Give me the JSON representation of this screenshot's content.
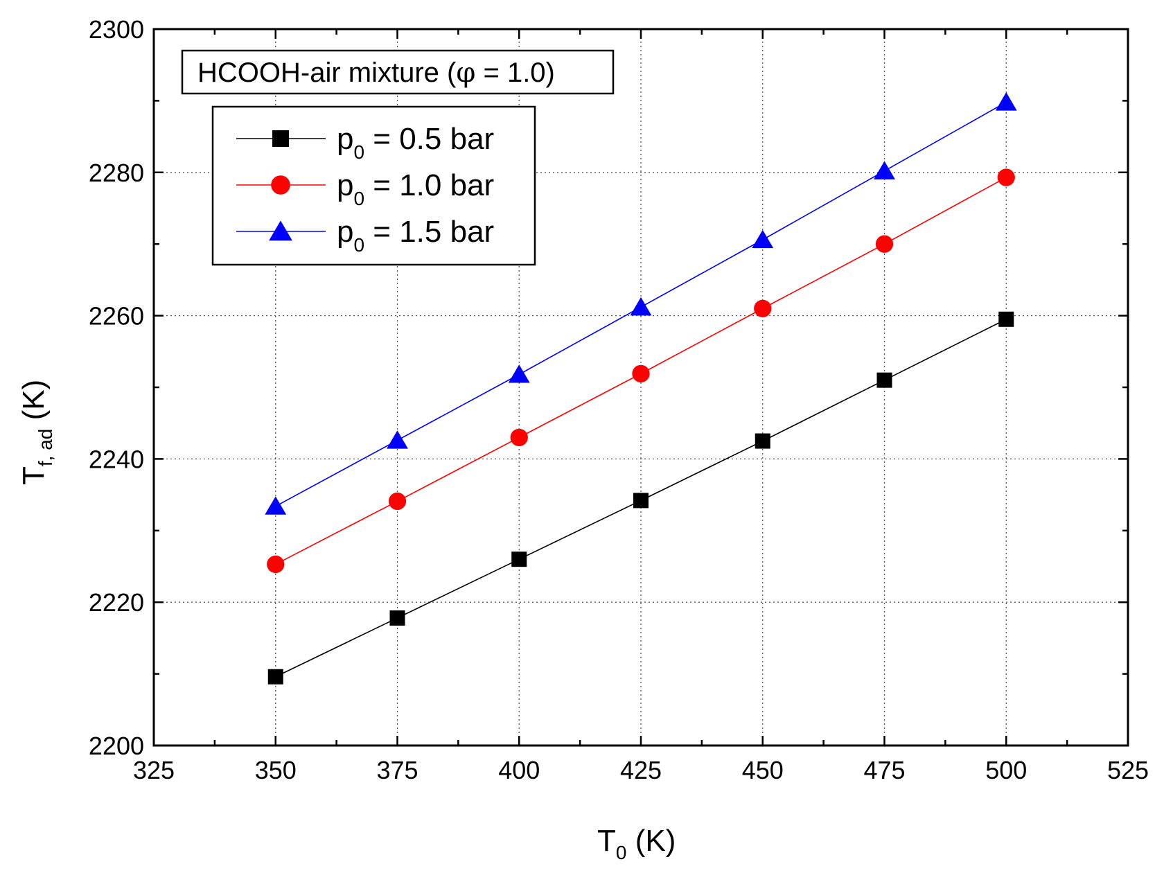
{
  "chart_data": {
    "type": "line",
    "annotation": {
      "main": "HCOOH-air mixture (",
      "phi": "φ",
      "rest": " = 1.0)"
    },
    "xlabel": {
      "main": "T",
      "sub": "0",
      "unit": " (K)"
    },
    "ylabel": {
      "main": "T",
      "sub": "f, ad",
      "unit": " (K)"
    },
    "xlim": [
      325,
      525
    ],
    "ylim": [
      2200,
      2300
    ],
    "xticks": [
      325,
      350,
      375,
      400,
      425,
      450,
      475,
      500,
      525
    ],
    "xtick_labels": [
      "325",
      "350",
      "375",
      "400",
      "425",
      "450",
      "475",
      "500",
      "525"
    ],
    "xminor": [
      337.5,
      362.5,
      387.5,
      412.5,
      437.5,
      462.5,
      487.5,
      512.5
    ],
    "yticks": [
      2200,
      2220,
      2240,
      2260,
      2280,
      2300
    ],
    "ytick_labels": [
      "2200",
      "2220",
      "2240",
      "2260",
      "2280",
      "2300"
    ],
    "yminor": [
      2210,
      2230,
      2250,
      2270,
      2290
    ],
    "grid": true,
    "x": [
      350,
      375,
      400,
      425,
      450,
      475,
      500
    ],
    "series": [
      {
        "name": "p0 = 0.5 bar",
        "label_main": "p",
        "label_sub": "0",
        "label_rest": " = 0.5 bar",
        "marker": "square",
        "color": "#000000",
        "values": [
          2209.6,
          2217.8,
          2226.0,
          2234.2,
          2242.5,
          2251.0,
          2259.5
        ]
      },
      {
        "name": "p0 = 1.0 bar",
        "label_main": "p",
        "label_sub": "0",
        "label_rest": " = 1.0 bar",
        "marker": "circle",
        "color": "#ff0000",
        "values": [
          2225.3,
          2234.1,
          2243.0,
          2251.9,
          2261.0,
          2270.0,
          2279.3
        ]
      },
      {
        "name": "p0 = 1.5 bar",
        "label_main": "p",
        "label_sub": "0",
        "label_rest": " = 1.5 bar",
        "marker": "triangle",
        "color": "#0000ff",
        "values": [
          2233.4,
          2242.6,
          2251.8,
          2261.2,
          2270.6,
          2280.2,
          2289.8
        ]
      }
    ]
  }
}
